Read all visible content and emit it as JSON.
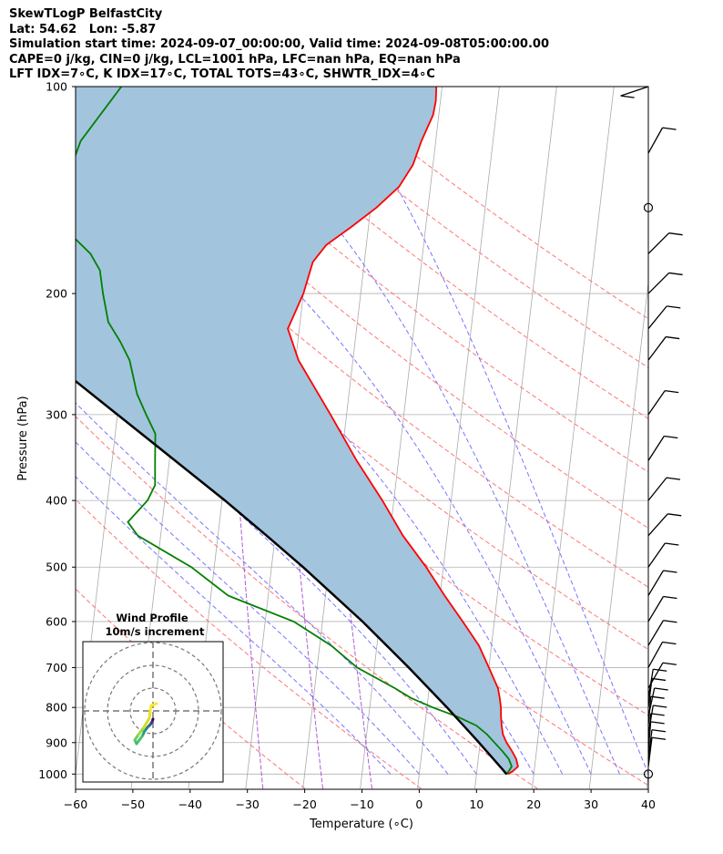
{
  "header": {
    "line1": "SkewTLogP BelfastCity",
    "line2": "Lat: 54.62   Lon: -5.87",
    "line3": "Simulation start time: 2024-09-07_00:00:00, Valid time: 2024-09-08T05:00:00.00",
    "line4": "CAPE=0 j/kg, CIN=0 j/kg, LCL=1001 hPa, LFC=nan hPa, EQ=nan hPa",
    "line5": "LFT IDX=7∘C, K IDX=17∘C, TOTAL TOTS=43∘C, SHWTR_IDX=4∘C"
  },
  "chart_data": {
    "type": "line",
    "title": "SkewTLogP BelfastCity",
    "xlabel": "Temperature (∘C)",
    "ylabel": "Pressure (hPa)",
    "xlim": [
      -60,
      40
    ],
    "ylim": [
      1050,
      100
    ],
    "y_scale": "log",
    "skew": "skewed isotherms",
    "x_ticks": [
      -60,
      -50,
      -40,
      -30,
      -20,
      -10,
      0,
      10,
      20,
      30,
      40
    ],
    "x_tick_labels": [
      "−60",
      "−50",
      "−40",
      "−30",
      "−20",
      "−10",
      "0",
      "10",
      "20",
      "30",
      "40"
    ],
    "y_ticks": [
      1000,
      900,
      800,
      700,
      600,
      500,
      400,
      300,
      200,
      100
    ],
    "y_tick_labels": [
      "1000",
      "900",
      "800",
      "700",
      "600",
      "500",
      "400",
      "300",
      "200",
      "100"
    ],
    "grid": true,
    "colors": {
      "temperature": "#ff0000",
      "dewpoint": "#008000",
      "parcel": "#000000",
      "fill": "#a2c4dd",
      "dry_adiabat": "#ff6666",
      "moist_adiabat": "#6666ff",
      "mixing_ratio": "#9933cc",
      "isotherm": "#aaaaaa"
    },
    "series": [
      {
        "pressure": [
          1000,
          990,
          975,
          950,
          925,
          900,
          875,
          850,
          825,
          800,
          775,
          750,
          700,
          650,
          600,
          550,
          500,
          450,
          400,
          350,
          300,
          275,
          250,
          225,
          200,
          180,
          170,
          160,
          150,
          140,
          130,
          120,
          110,
          105,
          100
        ],
        "values": [
          15.5,
          16.3,
          17.1,
          16.6,
          15.7,
          14.6,
          13.8,
          13.4,
          13.1,
          12.9,
          12.5,
          12.0,
          10.0,
          7.8,
          4.5,
          0.8,
          -3.0,
          -7.7,
          -12.0,
          -17.3,
          -22.8,
          -26.0,
          -29.5,
          -32.0,
          -30.0,
          -29.0,
          -27.0,
          -23.0,
          -19.0,
          -15.5,
          -13.5,
          -12.5,
          -11.0,
          -10.8,
          -11.0
        ]
      },
      {
        "pressure": [
          1000,
          975,
          950,
          925,
          900,
          875,
          850,
          825,
          800,
          775,
          750,
          700,
          650,
          600,
          550,
          500,
          450,
          430,
          400,
          380,
          350,
          320,
          300,
          280,
          250,
          235,
          220,
          200,
          185,
          175,
          165,
          155,
          140,
          120,
          100
        ],
        "values": [
          15.3,
          16.0,
          15.3,
          14.0,
          12.5,
          11.0,
          9.0,
          5.5,
          1.0,
          -3.0,
          -6.0,
          -13.0,
          -18.0,
          -25.0,
          -37.0,
          -44.0,
          -54.0,
          -56.0,
          -53.0,
          -52.0,
          -52.5,
          -53.0,
          -55.0,
          -57.0,
          -59.0,
          -61.0,
          -63.5,
          -65.0,
          -66.0,
          -68.0,
          -71.5,
          -75.0,
          -74.0,
          -72.0,
          -66.0
        ]
      },
      {
        "pressure": [
          1001,
          900,
          800,
          700,
          600,
          500,
          450,
          400,
          350,
          300,
          250,
          200,
          150,
          100
        ],
        "values": [
          15.3,
          9.8,
          3.5,
          -4.0,
          -13.0,
          -24.5,
          -31.5,
          -39.5,
          -49.0,
          -60.0,
          -73.0,
          -88.0,
          -104.0,
          -128.0
        ]
      }
    ]
  },
  "hodograph": {
    "title": "Wind Profile",
    "subtitle": "10m/s increment"
  },
  "barbs": {
    "pressure": [
      1000,
      975,
      950,
      925,
      900,
      875,
      850,
      825,
      800,
      775,
      750,
      700,
      650,
      600,
      550,
      500,
      450,
      400,
      350,
      300,
      250,
      225,
      200,
      175,
      150,
      125,
      100
    ],
    "shaft": [
      [
        0,
        -8
      ],
      [
        1,
        -8
      ],
      [
        2,
        -16
      ],
      [
        1,
        -12
      ],
      [
        1,
        -12
      ],
      [
        2,
        -12
      ],
      [
        1,
        -12
      ],
      [
        3,
        -14
      ],
      [
        2,
        -16
      ],
      [
        3,
        -18
      ],
      [
        8,
        -14
      ],
      [
        10,
        -18
      ],
      [
        12,
        -20
      ],
      [
        12,
        -20
      ],
      [
        12,
        -20
      ],
      [
        14,
        -20
      ],
      [
        16,
        -18
      ],
      [
        16,
        -20
      ],
      [
        18,
        -28
      ],
      [
        18,
        -26
      ],
      [
        18,
        -24
      ],
      [
        18,
        -22
      ],
      [
        16,
        -16
      ],
      [
        14,
        -14
      ],
      [
        0,
        -16
      ],
      [
        10,
        -18
      ],
      [
        -30,
        10
      ]
    ],
    "calm": [
      true,
      false,
      false,
      false,
      false,
      false,
      false,
      false,
      false,
      false,
      false,
      false,
      false,
      false,
      false,
      false,
      false,
      false,
      false,
      false,
      false,
      false,
      false,
      false,
      true,
      false,
      false
    ]
  }
}
